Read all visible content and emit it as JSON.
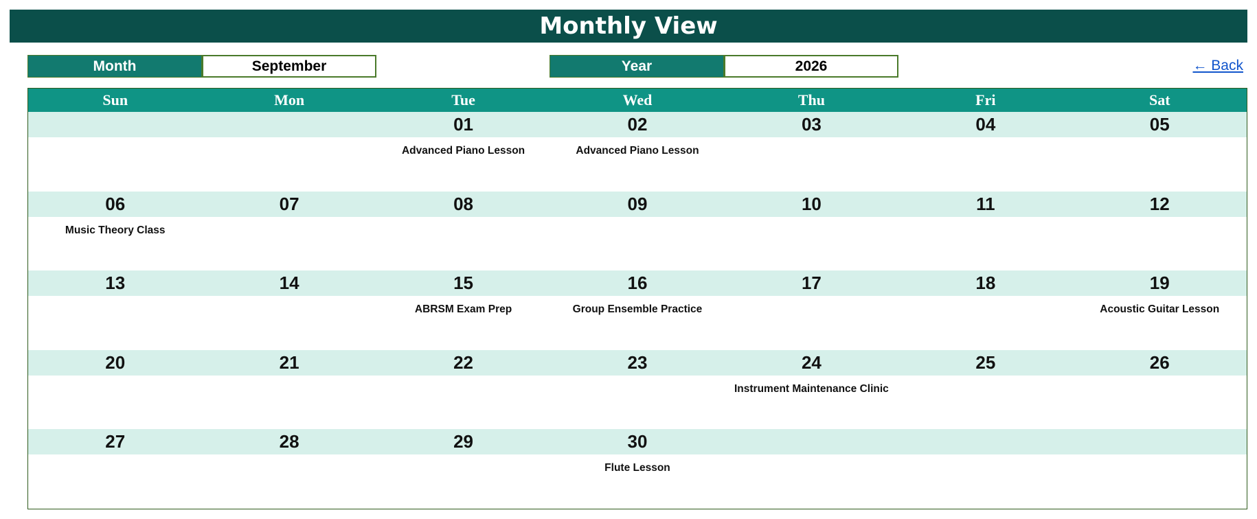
{
  "header": {
    "title": "Monthly View"
  },
  "controls": {
    "month_label": "Month",
    "month_value": "September",
    "year_label": "Year",
    "year_value": "2026",
    "back_label": "← Back"
  },
  "calendar": {
    "weekdays": [
      "Sun",
      "Mon",
      "Tue",
      "Wed",
      "Thu",
      "Fri",
      "Sat"
    ],
    "weeks": [
      {
        "days": [
          "",
          "",
          "01",
          "02",
          "03",
          "04",
          "05"
        ],
        "events": [
          "",
          "",
          "Advanced Piano Lesson",
          "Advanced Piano Lesson",
          "",
          "",
          ""
        ]
      },
      {
        "days": [
          "06",
          "07",
          "08",
          "09",
          "10",
          "11",
          "12"
        ],
        "events": [
          "Music Theory Class",
          "",
          "",
          "",
          "",
          "",
          ""
        ]
      },
      {
        "days": [
          "13",
          "14",
          "15",
          "16",
          "17",
          "18",
          "19"
        ],
        "events": [
          "",
          "",
          "ABRSM Exam Prep",
          "Group Ensemble Practice",
          "",
          "",
          "Acoustic Guitar Lesson"
        ]
      },
      {
        "days": [
          "20",
          "21",
          "22",
          "23",
          "24",
          "25",
          "26"
        ],
        "events": [
          "",
          "",
          "",
          "",
          "Instrument Maintenance Clinic",
          "",
          ""
        ]
      },
      {
        "days": [
          "27",
          "28",
          "29",
          "30",
          "",
          "",
          ""
        ],
        "events": [
          "",
          "",
          "",
          "Flute Lesson",
          "",
          "",
          ""
        ]
      }
    ]
  },
  "colors": {
    "title_bg": "#0b4f4a",
    "label_bg": "#127a6f",
    "weekday_bg": "#0f9485",
    "date_row_bg": "#d6f0ea",
    "border": "#4a7a2a",
    "link": "#1155cc"
  }
}
